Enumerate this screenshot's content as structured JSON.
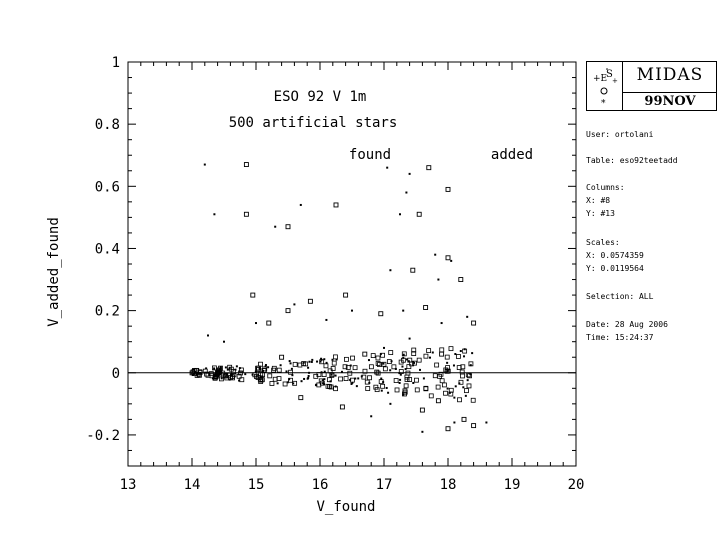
{
  "chart_data": {
    "type": "scatter",
    "title_lines": [
      "ESO 92 V 1m",
      "500 artificial stars"
    ],
    "legend": [
      "found",
      "added"
    ],
    "xlabel": "V_found",
    "ylabel": "V_added_found",
    "xlim": [
      13,
      20
    ],
    "ylim": [
      -0.3,
      1
    ],
    "xticks": [
      13,
      14,
      15,
      16,
      17,
      18,
      19,
      20
    ],
    "yticks": [
      -0.2,
      0,
      0.2,
      0.4,
      0.6,
      0.8,
      1
    ],
    "ytick_labels": [
      "-0.2",
      "0",
      "0.2",
      "0.4",
      "0.6",
      "0.8",
      "1"
    ],
    "zero_line": 0,
    "series": [
      {
        "marker": "small-square",
        "points": [
          [
            14.85,
            0.67
          ],
          [
            14.85,
            0.51
          ],
          [
            15.5,
            0.47
          ],
          [
            16.25,
            0.54
          ],
          [
            17.7,
            0.66
          ],
          [
            17.55,
            0.51
          ],
          [
            18.0,
            0.59
          ],
          [
            18.0,
            0.37
          ],
          [
            17.45,
            0.33
          ],
          [
            18.2,
            0.3
          ],
          [
            14.95,
            0.25
          ],
          [
            15.2,
            0.16
          ],
          [
            15.5,
            0.2
          ],
          [
            15.85,
            0.23
          ],
          [
            16.4,
            0.25
          ],
          [
            16.95,
            0.19
          ],
          [
            17.65,
            0.21
          ],
          [
            18.4,
            0.16
          ],
          [
            16.7,
            0.06
          ],
          [
            17.9,
            0.06
          ],
          [
            15.4,
            0.05
          ],
          [
            15.7,
            -0.08
          ],
          [
            17.85,
            -0.09
          ],
          [
            18.25,
            -0.15
          ],
          [
            18.4,
            -0.17
          ],
          [
            17.6,
            -0.12
          ],
          [
            18.0,
            -0.18
          ],
          [
            16.35,
            -0.11
          ]
        ]
      },
      {
        "marker": "dot",
        "points": [
          [
            14.2,
            0.67
          ],
          [
            14.35,
            0.51
          ],
          [
            15.7,
            0.54
          ],
          [
            15.3,
            0.47
          ],
          [
            17.4,
            0.64
          ],
          [
            17.25,
            0.51
          ],
          [
            17.35,
            0.58
          ],
          [
            17.1,
            0.33
          ],
          [
            17.8,
            0.38
          ],
          [
            17.05,
            0.66
          ],
          [
            18.05,
            0.36
          ],
          [
            17.85,
            0.3
          ],
          [
            14.25,
            0.12
          ],
          [
            14.5,
            0.1
          ],
          [
            15.0,
            0.16
          ],
          [
            15.6,
            0.22
          ],
          [
            16.1,
            0.17
          ],
          [
            16.5,
            0.2
          ],
          [
            17.3,
            0.2
          ],
          [
            17.9,
            0.16
          ],
          [
            18.3,
            0.18
          ],
          [
            17.0,
            0.08
          ],
          [
            17.4,
            0.11
          ],
          [
            18.2,
            0.07
          ],
          [
            16.8,
            -0.14
          ],
          [
            17.1,
            -0.1
          ],
          [
            17.6,
            -0.19
          ],
          [
            18.1,
            -0.16
          ],
          [
            18.6,
            -0.16
          ],
          [
            17.3,
            -0.07
          ]
        ]
      }
    ]
  },
  "panel": {
    "logo_title": "MIDAS",
    "logo_version": "99NOV",
    "lines": [
      "User: ortolani",
      "Table: eso92teetadd",
      "Columns:",
      "X: #8",
      "Y: #13",
      "Scales:",
      "X: 0.0574359",
      "Y: 0.0119564",
      "Selection: ALL",
      "Date: 28 Aug 2006",
      "Time: 15:24:37"
    ]
  }
}
